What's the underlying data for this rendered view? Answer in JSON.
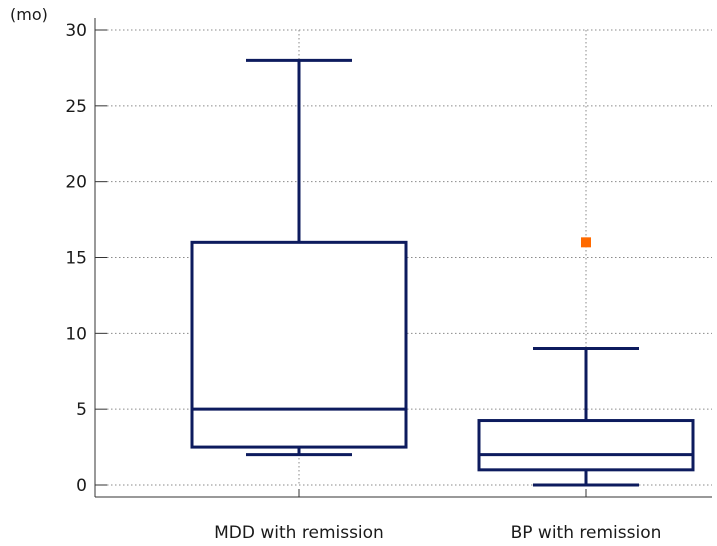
{
  "chart_data": {
    "type": "box",
    "title": "",
    "xlabel": "",
    "ylabel": "(mo)",
    "ylim": [
      0,
      30
    ],
    "yticks": [
      0,
      5,
      10,
      15,
      20,
      25,
      30
    ],
    "grid": true,
    "categories": [
      "MDD with remission",
      "BP with remission"
    ],
    "boxes": [
      {
        "category": "MDD with remission",
        "whisker_low": 2,
        "q1": 2.5,
        "median": 5,
        "q3": 16,
        "whisker_high": 28,
        "outliers": []
      },
      {
        "category": "BP with remission",
        "whisker_low": 0,
        "q1": 1,
        "median": 2,
        "q3": 4.25,
        "whisker_high": 9,
        "outliers": [
          16
        ]
      }
    ],
    "colors": {
      "box": "#0d1b5e",
      "outlier": "#ff6a00",
      "grid": "#8a8a8a",
      "axis": "#333333"
    }
  }
}
